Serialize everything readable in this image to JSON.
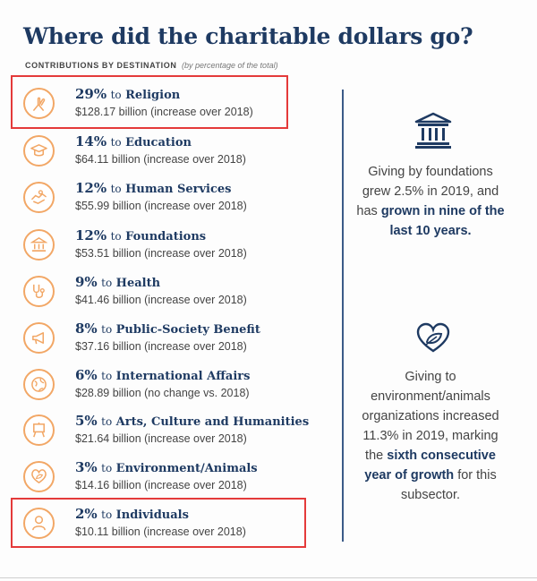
{
  "title": "Where did the charitable dollars go?",
  "subtitle": {
    "main": "CONTRIBUTIONS BY DESTINATION",
    "note": "(by percentage of the total)"
  },
  "rows": [
    {
      "pct": "29%",
      "category": "Religion",
      "detail": "$128.17 billion (increase over 2018)",
      "icon": "praying-hands-icon"
    },
    {
      "pct": "14%",
      "category": "Education",
      "detail": "$64.11 billion (increase over 2018)",
      "icon": "graduation-cap-icon"
    },
    {
      "pct": "12%",
      "category": "Human Services",
      "detail": "$55.99 billion (increase over 2018)",
      "icon": "helping-hands-icon"
    },
    {
      "pct": "12%",
      "category": "Foundations",
      "detail": "$53.51 billion (increase over 2018)",
      "icon": "building-icon"
    },
    {
      "pct": "9%",
      "category": "Health",
      "detail": "$41.46 billion (increase over 2018)",
      "icon": "stethoscope-icon"
    },
    {
      "pct": "8%",
      "category": "Public-Society Benefit",
      "detail": "$37.16 billion (increase over 2018)",
      "icon": "megaphone-icon"
    },
    {
      "pct": "6%",
      "category": "International Affairs",
      "detail": "$28.89 billion (no change vs. 2018)",
      "icon": "globe-icon"
    },
    {
      "pct": "5%",
      "category": "Arts, Culture and Humanities",
      "detail": "$21.64 billion (increase over 2018)",
      "icon": "easel-icon"
    },
    {
      "pct": "3%",
      "category": "Environment/Animals",
      "detail": "$14.16 billion (increase over 2018)",
      "icon": "heart-leaf-icon"
    },
    {
      "pct": "2%",
      "category": "Individuals",
      "detail": "$10.11 billion (increase over 2018)",
      "icon": "person-icon"
    }
  ],
  "row_connector": "to",
  "sidebar": {
    "foundations": {
      "icon": "bank-building-icon",
      "text": "Giving by foundations grew 2.5% in 2019, and has",
      "bold": "grown in nine of the last 10 years."
    },
    "environment": {
      "icon": "heart-leaf-icon",
      "text": "Giving to environment/animals organizations increased 11.3% in 2019, marking the",
      "bold": "sixth consecutive year of growth",
      "text_after": "for this subsector."
    }
  },
  "colors": {
    "title": "#1e3a62",
    "icon_ring": "#f2a766",
    "highlight": "#e43a3a",
    "divider": "#3b5b88"
  }
}
